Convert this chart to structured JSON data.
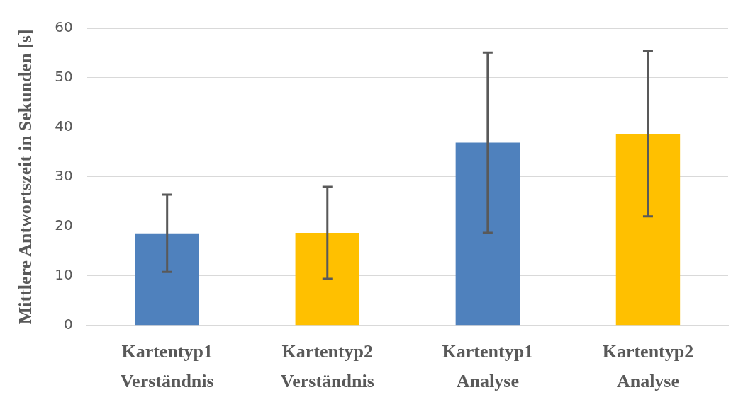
{
  "chart_data": {
    "type": "bar",
    "ylabel": "Mittlere Antwortszeit in Sekunden [s]",
    "categories": [
      "Kartentyp1\nVerständnis",
      "Kartentyp2\nVerständnis",
      "Kartentyp1\nAnalyse",
      "Kartentyp2\nAnalyse"
    ],
    "values": [
      18.6,
      18.7,
      36.9,
      38.7
    ],
    "colors": [
      "#4f81bd",
      "#ffc000",
      "#4f81bd",
      "#ffc000"
    ],
    "errors": [
      7.8,
      9.3,
      18.2,
      16.7
    ],
    "ylim": [
      0,
      60
    ],
    "yticks": [
      0,
      10,
      20,
      30,
      40,
      50,
      60
    ],
    "grid": "y",
    "legend": false
  }
}
